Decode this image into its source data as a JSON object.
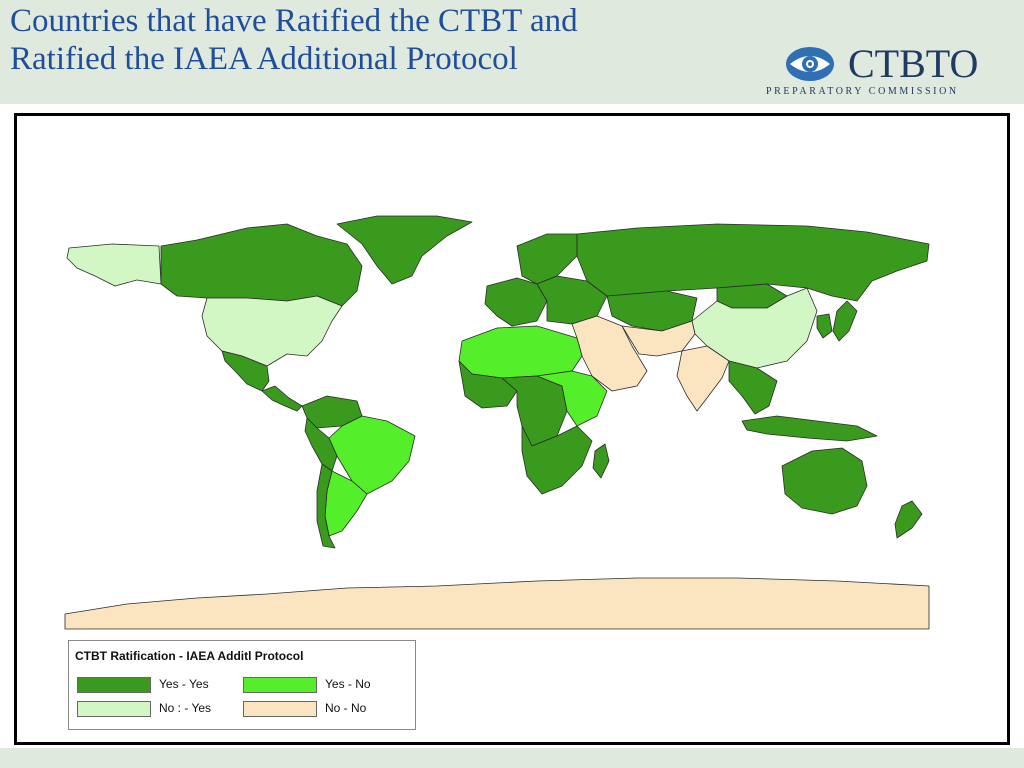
{
  "header": {
    "title_line1": "Countries that have Ratified the CTBT and",
    "title_line2": "Ratified the IAEA Additional Protocol"
  },
  "logo": {
    "wordmark": "CTBTO",
    "subtitle": "PREPARATORY COMMISSION",
    "icon": "ctbto-emblem-icon"
  },
  "colors": {
    "header_bg": "#dfe9de",
    "title": "#1f4f9c",
    "ocean": "#ffffff",
    "border": "#000000",
    "yes_yes": "#3a9a1e",
    "yes_no": "#55ee2b",
    "no_yes": "#d2f7c4",
    "no_no": "#fbe5c1"
  },
  "legend": {
    "title": "CTBT Ratification - IAEA Additl Protocol",
    "items": [
      {
        "key": "yes_yes",
        "label": "Yes - Yes",
        "color": "#3a9a1e"
      },
      {
        "key": "yes_no",
        "label": "Yes - No",
        "color": "#55ee2b"
      },
      {
        "key": "no_yes",
        "label": "No : - Yes",
        "color": "#d2f7c4"
      },
      {
        "key": "no_no",
        "label": "No  - No",
        "color": "#fbe5c1"
      }
    ]
  },
  "map": {
    "regions": [
      {
        "name": "alaska",
        "status": "no_yes"
      },
      {
        "name": "canada",
        "status": "yes_yes"
      },
      {
        "name": "greenland",
        "status": "yes_yes"
      },
      {
        "name": "usa",
        "status": "no_yes"
      },
      {
        "name": "mexico",
        "status": "yes_yes"
      },
      {
        "name": "central-america",
        "status": "yes_yes"
      },
      {
        "name": "colombia-venezuela",
        "status": "yes_yes"
      },
      {
        "name": "brazil",
        "status": "yes_no"
      },
      {
        "name": "peru-bolivia",
        "status": "yes_yes"
      },
      {
        "name": "argentina",
        "status": "yes_no"
      },
      {
        "name": "chile",
        "status": "yes_yes"
      },
      {
        "name": "scandinavia",
        "status": "yes_yes"
      },
      {
        "name": "western-europe",
        "status": "yes_yes"
      },
      {
        "name": "eastern-europe",
        "status": "yes_yes"
      },
      {
        "name": "russia",
        "status": "yes_yes"
      },
      {
        "name": "kazakhstan-central-asia",
        "status": "yes_yes"
      },
      {
        "name": "china",
        "status": "no_yes"
      },
      {
        "name": "mongolia",
        "status": "yes_yes"
      },
      {
        "name": "middle-east",
        "status": "no_no"
      },
      {
        "name": "iran-afghanistan",
        "status": "no_no"
      },
      {
        "name": "india",
        "status": "no_no"
      },
      {
        "name": "southeast-asia",
        "status": "yes_yes"
      },
      {
        "name": "indonesia",
        "status": "yes_yes"
      },
      {
        "name": "japan",
        "status": "yes_yes"
      },
      {
        "name": "korea",
        "status": "yes_yes"
      },
      {
        "name": "north-africa",
        "status": "yes_no"
      },
      {
        "name": "west-africa",
        "status": "yes_yes"
      },
      {
        "name": "central-africa",
        "status": "yes_yes"
      },
      {
        "name": "east-africa",
        "status": "yes_no"
      },
      {
        "name": "southern-africa",
        "status": "yes_yes"
      },
      {
        "name": "madagascar",
        "status": "yes_yes"
      },
      {
        "name": "australia",
        "status": "yes_yes"
      },
      {
        "name": "new-zealand",
        "status": "yes_yes"
      },
      {
        "name": "antarctica",
        "status": "no_no"
      }
    ]
  }
}
